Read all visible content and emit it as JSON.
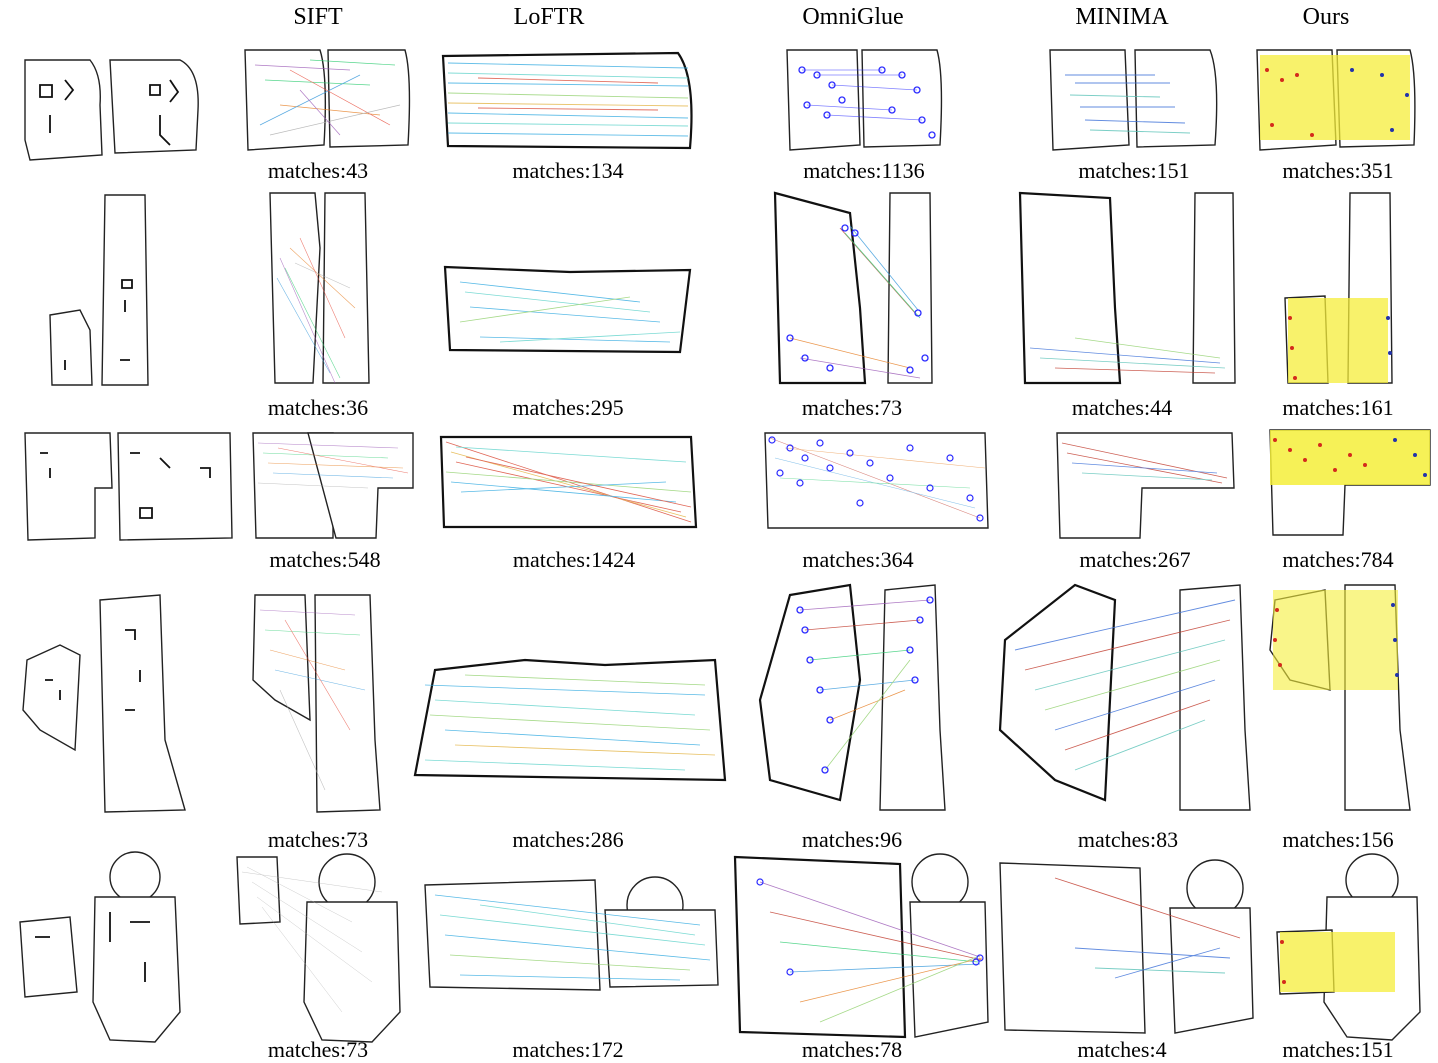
{
  "columns": [
    "SIFT",
    "LoFTR",
    "OmniGlue",
    "MINIMA",
    "Ours"
  ],
  "rows": [
    {
      "captions": [
        "matches:43",
        "matches:134",
        "matches:1136",
        "matches:151",
        "matches:351"
      ]
    },
    {
      "captions": [
        "matches:36",
        "matches:295",
        "matches:73",
        "matches:44",
        "matches:161"
      ]
    },
    {
      "captions": [
        "matches:548",
        "matches:1424",
        "matches:364",
        "matches:267",
        "matches:784"
      ]
    },
    {
      "captions": [
        "matches:73",
        "matches:286",
        "matches:96",
        "matches:83",
        "matches:156"
      ]
    },
    {
      "captions": [
        "matches:73",
        "matches:172",
        "matches:78",
        "matches:4",
        "matches:151"
      ]
    }
  ],
  "colors": {
    "sift_lines": [
      "#9b59b6",
      "#2ecc71",
      "#e67e22",
      "#3498db",
      "#e74c3c",
      "#aaaaaa"
    ],
    "loftr_lines": [
      "#2fa9e0",
      "#5ad1c9",
      "#8fd06b",
      "#e2b13c",
      "#d9432f"
    ],
    "omniglue_points": "#2b2bff",
    "minima_lines": [
      "#3a6fd8",
      "#59c2b7",
      "#c0392b",
      "#8fd06b"
    ],
    "ours_lines": "#f5ee3a",
    "ours_points_left": "#d42a1c",
    "ours_points_right": "#2233aa"
  }
}
